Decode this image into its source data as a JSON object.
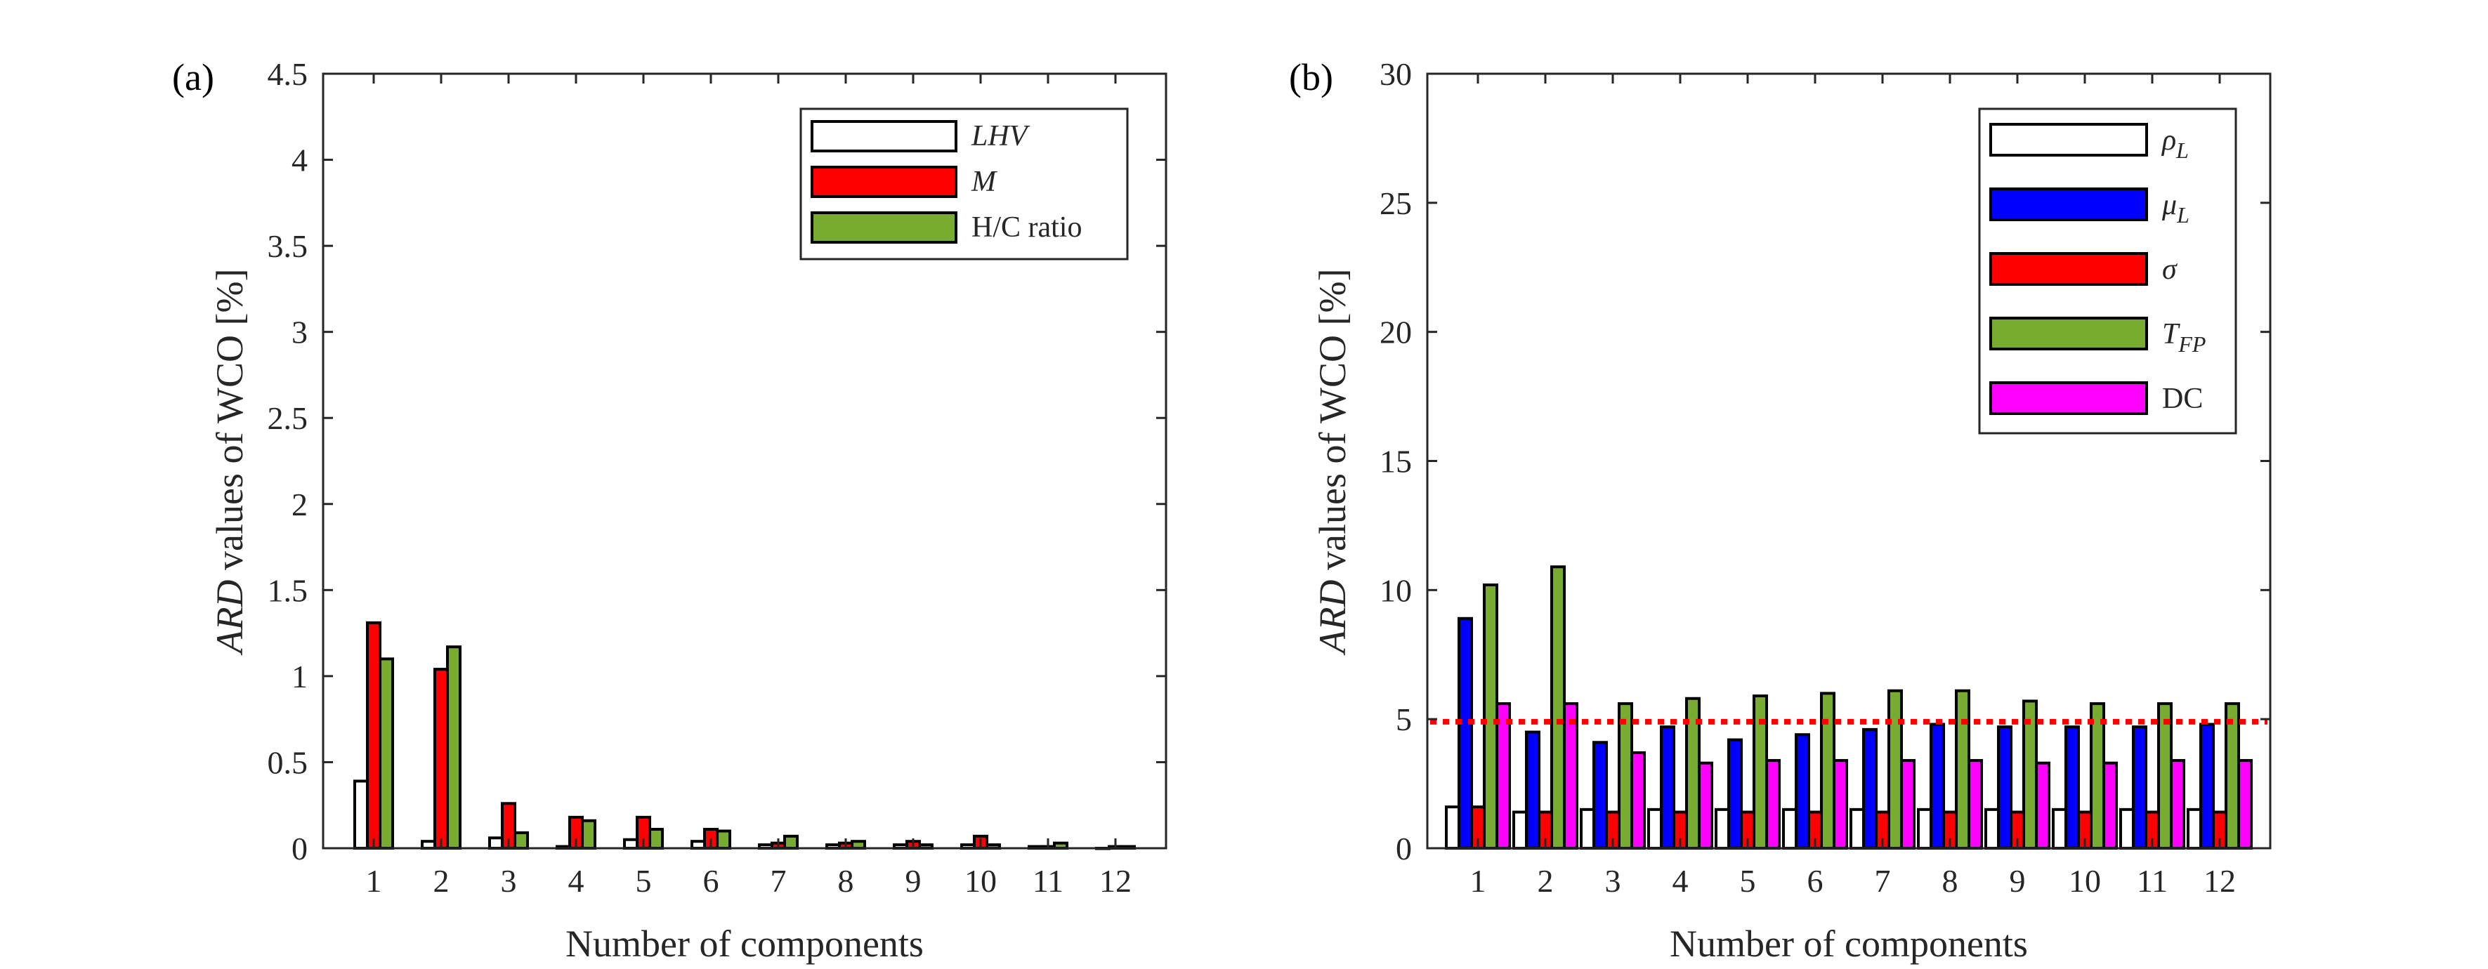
{
  "chart_data": [
    {
      "panel_label": "(a)",
      "type": "bar",
      "categories": [
        "1",
        "2",
        "3",
        "4",
        "5",
        "6",
        "7",
        "8",
        "9",
        "10",
        "11",
        "12"
      ],
      "series": [
        {
          "name": "LHV",
          "italic": true,
          "color": "#ffffff",
          "values": [
            0.39,
            0.04,
            0.06,
            0.01,
            0.05,
            0.04,
            0.02,
            0.02,
            0.02,
            0.02,
            0.01,
            0.0
          ]
        },
        {
          "name": "M",
          "italic": true,
          "color": "#ff0000",
          "values": [
            1.31,
            1.04,
            0.26,
            0.18,
            0.18,
            0.11,
            0.03,
            0.03,
            0.04,
            0.07,
            0.01,
            0.01
          ]
        },
        {
          "name": "H/C ratio",
          "italic": false,
          "color": "#77ac30",
          "values": [
            1.1,
            1.17,
            0.09,
            0.16,
            0.11,
            0.1,
            0.07,
            0.04,
            0.02,
            0.02,
            0.03,
            0.01
          ]
        }
      ],
      "xlabel": "Number of components",
      "ylabel_italic": "ARD",
      "ylabel_rest": " values of WCO [%]",
      "ylim": [
        0,
        4.5
      ],
      "yticks": [
        0,
        0.5,
        1,
        1.5,
        2,
        2.5,
        3,
        3.5,
        4,
        4.5
      ],
      "ytick_labels": [
        "0",
        "0.5",
        "1",
        "1.5",
        "2",
        "2.5",
        "3",
        "3.5",
        "4",
        "4.5"
      ],
      "legend_position": "top-right",
      "grid": false
    },
    {
      "panel_label": "(b)",
      "type": "bar",
      "categories": [
        "1",
        "2",
        "3",
        "4",
        "5",
        "6",
        "7",
        "8",
        "9",
        "10",
        "11",
        "12"
      ],
      "series": [
        {
          "name": "ρL",
          "symbol": "ρ",
          "subscript": "L",
          "color": "#ffffff",
          "values": [
            1.6,
            1.4,
            1.5,
            1.5,
            1.5,
            1.5,
            1.5,
            1.5,
            1.5,
            1.5,
            1.5,
            1.5
          ]
        },
        {
          "name": "μL",
          "symbol": "μ",
          "subscript": "L",
          "color": "#0000ff",
          "values": [
            8.9,
            4.5,
            4.1,
            4.7,
            4.2,
            4.4,
            4.6,
            4.8,
            4.7,
            4.7,
            4.7,
            4.8
          ]
        },
        {
          "name": "σ",
          "symbol": "σ",
          "subscript": "",
          "color": "#ff0000",
          "values": [
            1.6,
            1.4,
            1.4,
            1.4,
            1.4,
            1.4,
            1.4,
            1.4,
            1.4,
            1.4,
            1.4,
            1.4
          ]
        },
        {
          "name": "TFP",
          "symbol": "T",
          "subscript": "FP",
          "color": "#77ac30",
          "values": [
            10.2,
            10.9,
            5.6,
            5.8,
            5.9,
            6.0,
            6.1,
            6.1,
            5.7,
            5.6,
            5.6,
            5.6
          ]
        },
        {
          "name": "DC",
          "symbol": "DC",
          "subscript": "",
          "color": "#ff00ff",
          "values": [
            5.6,
            5.6,
            3.7,
            3.3,
            3.4,
            3.4,
            3.4,
            3.4,
            3.3,
            3.3,
            3.4,
            3.4
          ]
        }
      ],
      "reference_line": {
        "y": 4.9,
        "color": "#ff0000",
        "style": "dotted"
      },
      "xlabel": "Number of components",
      "ylabel_italic": "ARD",
      "ylabel_rest": " values of WCO [%]",
      "ylim": [
        0,
        30
      ],
      "yticks": [
        0,
        5,
        10,
        15,
        20,
        25,
        30
      ],
      "ytick_labels": [
        "0",
        "5",
        "10",
        "15",
        "20",
        "25",
        "30"
      ],
      "legend_position": "top-right",
      "grid": false
    }
  ]
}
